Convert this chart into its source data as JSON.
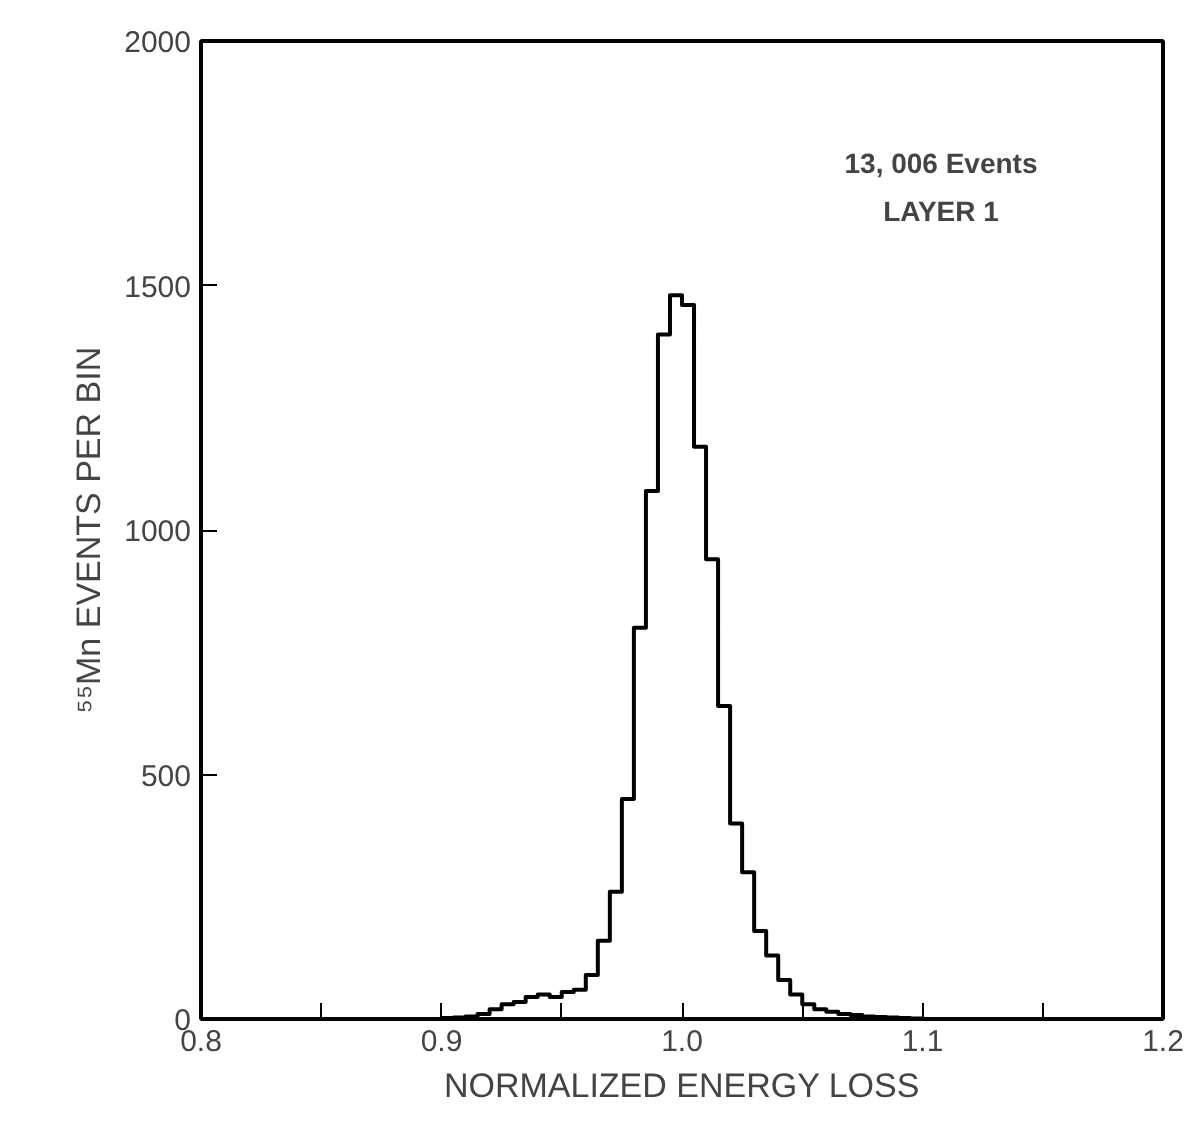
{
  "chart_data": {
    "type": "histogram",
    "xlabel": "NORMALIZED ENERGY LOSS",
    "ylabel": "⁵⁵Mn EVENTS PER BIN",
    "annotations": [
      "13, 006 Events",
      "LAYER 1"
    ],
    "bins": [
      0.9,
      0.905,
      0.91,
      0.915,
      0.92,
      0.925,
      0.93,
      0.935,
      0.94,
      0.945,
      0.95,
      0.955,
      0.96,
      0.965,
      0.97,
      0.975,
      0.98,
      0.985,
      0.99,
      0.995,
      1.0,
      1.005,
      1.01,
      1.015,
      1.02,
      1.025,
      1.03,
      1.035,
      1.04,
      1.045,
      1.05,
      1.055,
      1.06,
      1.065,
      1.07,
      1.075,
      1.08,
      1.085,
      1.09,
      1.095,
      1.1
    ],
    "values": [
      2,
      3,
      5,
      10,
      20,
      30,
      35,
      45,
      50,
      45,
      55,
      60,
      90,
      160,
      260,
      450,
      800,
      1080,
      1400,
      1480,
      1460,
      1170,
      940,
      640,
      400,
      300,
      180,
      130,
      80,
      50,
      30,
      20,
      15,
      10,
      8,
      5,
      4,
      3,
      2,
      1
    ],
    "color": "#000000",
    "xlim": [
      0.8,
      1.2
    ],
    "ylim": [
      0,
      2000
    ],
    "xticks": [
      {
        "value": 0.8,
        "label": "0.8"
      },
      {
        "value": 0.85,
        "label": null
      },
      {
        "value": 0.9,
        "label": "0.9"
      },
      {
        "value": 0.95,
        "label": null
      },
      {
        "value": 1.0,
        "label": "1.0"
      },
      {
        "value": 1.05,
        "label": null
      },
      {
        "value": 1.1,
        "label": "1.1"
      },
      {
        "value": 1.15,
        "label": null
      },
      {
        "value": 1.2,
        "label": "1.2"
      }
    ],
    "yticks": [
      0,
      500,
      1000,
      1500,
      2000
    ],
    "grid": false
  }
}
